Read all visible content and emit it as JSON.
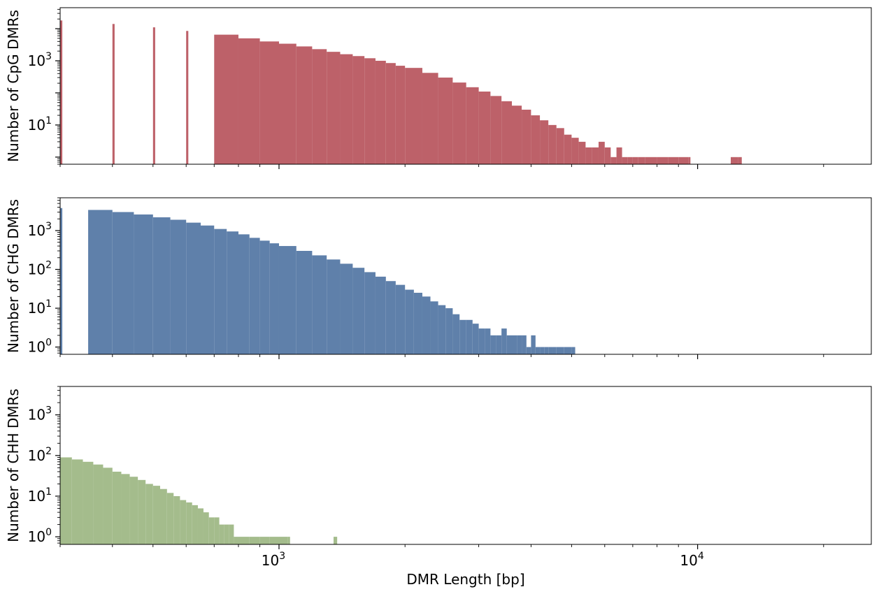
{
  "figure": {
    "xlabel": "DMR Length [bp]"
  },
  "chart_data": [
    {
      "type": "bar",
      "panel": "top",
      "ylabel": "Number of CpG DMRs",
      "color": "#bd6169",
      "x_scale": "log",
      "y_scale": "log",
      "xlim": [
        300,
        26000
      ],
      "ylim": [
        0.6,
        45000
      ],
      "x_tick_labels": [
        {
          "base": "10",
          "exp": "3",
          "value": 1000
        },
        {
          "base": "10",
          "exp": "4",
          "value": 10000
        }
      ],
      "y_tick_labels": [
        {
          "base": "10",
          "exp": "1",
          "value": 10
        },
        {
          "base": "10",
          "exp": "3",
          "value": 1000
        }
      ],
      "series": [
        {
          "x": [
            300,
            400,
            500,
            600,
            700,
            800,
            900,
            1000,
            1100,
            1200,
            1300,
            1400,
            1500,
            1600,
            1700,
            1800,
            1900,
            2000,
            2200,
            2400,
            2600,
            2800,
            3000,
            3200,
            3400,
            3600,
            3800,
            4000,
            4200,
            4400,
            4600,
            4800,
            5000,
            5200,
            5400,
            5600,
            5800,
            6000,
            6200,
            6400,
            6600,
            6800,
            7000,
            7200,
            7500,
            7800,
            8000,
            8500,
            9000,
            9500,
            12000,
            12500
          ],
          "values": [
            18000,
            14000,
            11000,
            8500,
            6500,
            5000,
            4000,
            3400,
            2800,
            2300,
            1900,
            1600,
            1400,
            1200,
            1000,
            850,
            700,
            600,
            420,
            300,
            210,
            150,
            110,
            80,
            55,
            40,
            30,
            20,
            14,
            10,
            8,
            5,
            4,
            3,
            2,
            2,
            3,
            2,
            1,
            2,
            1,
            1,
            1,
            1,
            1,
            1,
            1,
            1,
            1,
            1,
            1,
            1
          ]
        }
      ]
    },
    {
      "type": "bar",
      "panel": "middle",
      "ylabel": "Number of CHG DMRs",
      "color": "#5f80aa",
      "x_scale": "log",
      "y_scale": "log",
      "xlim": [
        300,
        26000
      ],
      "ylim": [
        0.65,
        7000
      ],
      "x_tick_labels": [
        {
          "base": "10",
          "exp": "3",
          "value": 1000
        },
        {
          "base": "10",
          "exp": "4",
          "value": 10000
        }
      ],
      "y_tick_labels": [
        {
          "base": "10",
          "exp": "0",
          "value": 1
        },
        {
          "base": "10",
          "exp": "1",
          "value": 10
        },
        {
          "base": "10",
          "exp": "2",
          "value": 100
        },
        {
          "base": "10",
          "exp": "3",
          "value": 1000
        }
      ],
      "series": [
        {
          "x": [
            300,
            350,
            400,
            450,
            500,
            550,
            600,
            650,
            700,
            750,
            800,
            850,
            900,
            950,
            1000,
            1100,
            1200,
            1300,
            1400,
            1500,
            1600,
            1700,
            1800,
            1900,
            2000,
            2100,
            2200,
            2300,
            2400,
            2500,
            2600,
            2700,
            2800,
            2900,
            3000,
            3100,
            3200,
            3300,
            3400,
            3500,
            3600,
            3700,
            3800,
            3900,
            4000,
            4100,
            4200,
            4300,
            4400,
            4500,
            4600,
            4800,
            5000
          ],
          "values": [
            3800,
            3400,
            3000,
            2600,
            2200,
            1900,
            1600,
            1350,
            1100,
            950,
            800,
            650,
            550,
            470,
            400,
            300,
            230,
            180,
            140,
            110,
            85,
            65,
            50,
            40,
            30,
            25,
            20,
            15,
            12,
            10,
            7,
            5,
            5,
            4,
            3,
            3,
            2,
            2,
            3,
            2,
            2,
            2,
            2,
            1,
            2,
            1,
            1,
            1,
            1,
            1,
            1,
            1,
            1
          ]
        }
      ]
    },
    {
      "type": "bar",
      "panel": "bottom",
      "ylabel": "Number of CHH DMRs",
      "color": "#a4bc8c",
      "x_scale": "log",
      "y_scale": "log",
      "xlim": [
        300,
        26000
      ],
      "ylim": [
        0.65,
        5000
      ],
      "x_tick_labels": [
        {
          "base": "10",
          "exp": "3",
          "value": 1000
        },
        {
          "base": "10",
          "exp": "4",
          "value": 10000
        }
      ],
      "y_tick_labels": [
        {
          "base": "10",
          "exp": "0",
          "value": 1
        },
        {
          "base": "10",
          "exp": "1",
          "value": 10
        },
        {
          "base": "10",
          "exp": "2",
          "value": 100
        },
        {
          "base": "10",
          "exp": "3",
          "value": 1000
        }
      ],
      "series": [
        {
          "x": [
            300,
            320,
            340,
            360,
            380,
            400,
            420,
            440,
            460,
            480,
            500,
            520,
            540,
            560,
            580,
            600,
            620,
            640,
            660,
            680,
            700,
            720,
            740,
            760,
            780,
            800,
            850,
            900,
            950,
            1000,
            1050,
            1350
          ],
          "values": [
            90,
            80,
            70,
            60,
            50,
            40,
            35,
            30,
            25,
            20,
            18,
            15,
            12,
            10,
            8,
            7,
            6,
            5,
            4,
            3,
            3,
            2,
            2,
            2,
            1,
            1,
            1,
            1,
            1,
            1,
            1,
            1
          ]
        }
      ]
    }
  ]
}
